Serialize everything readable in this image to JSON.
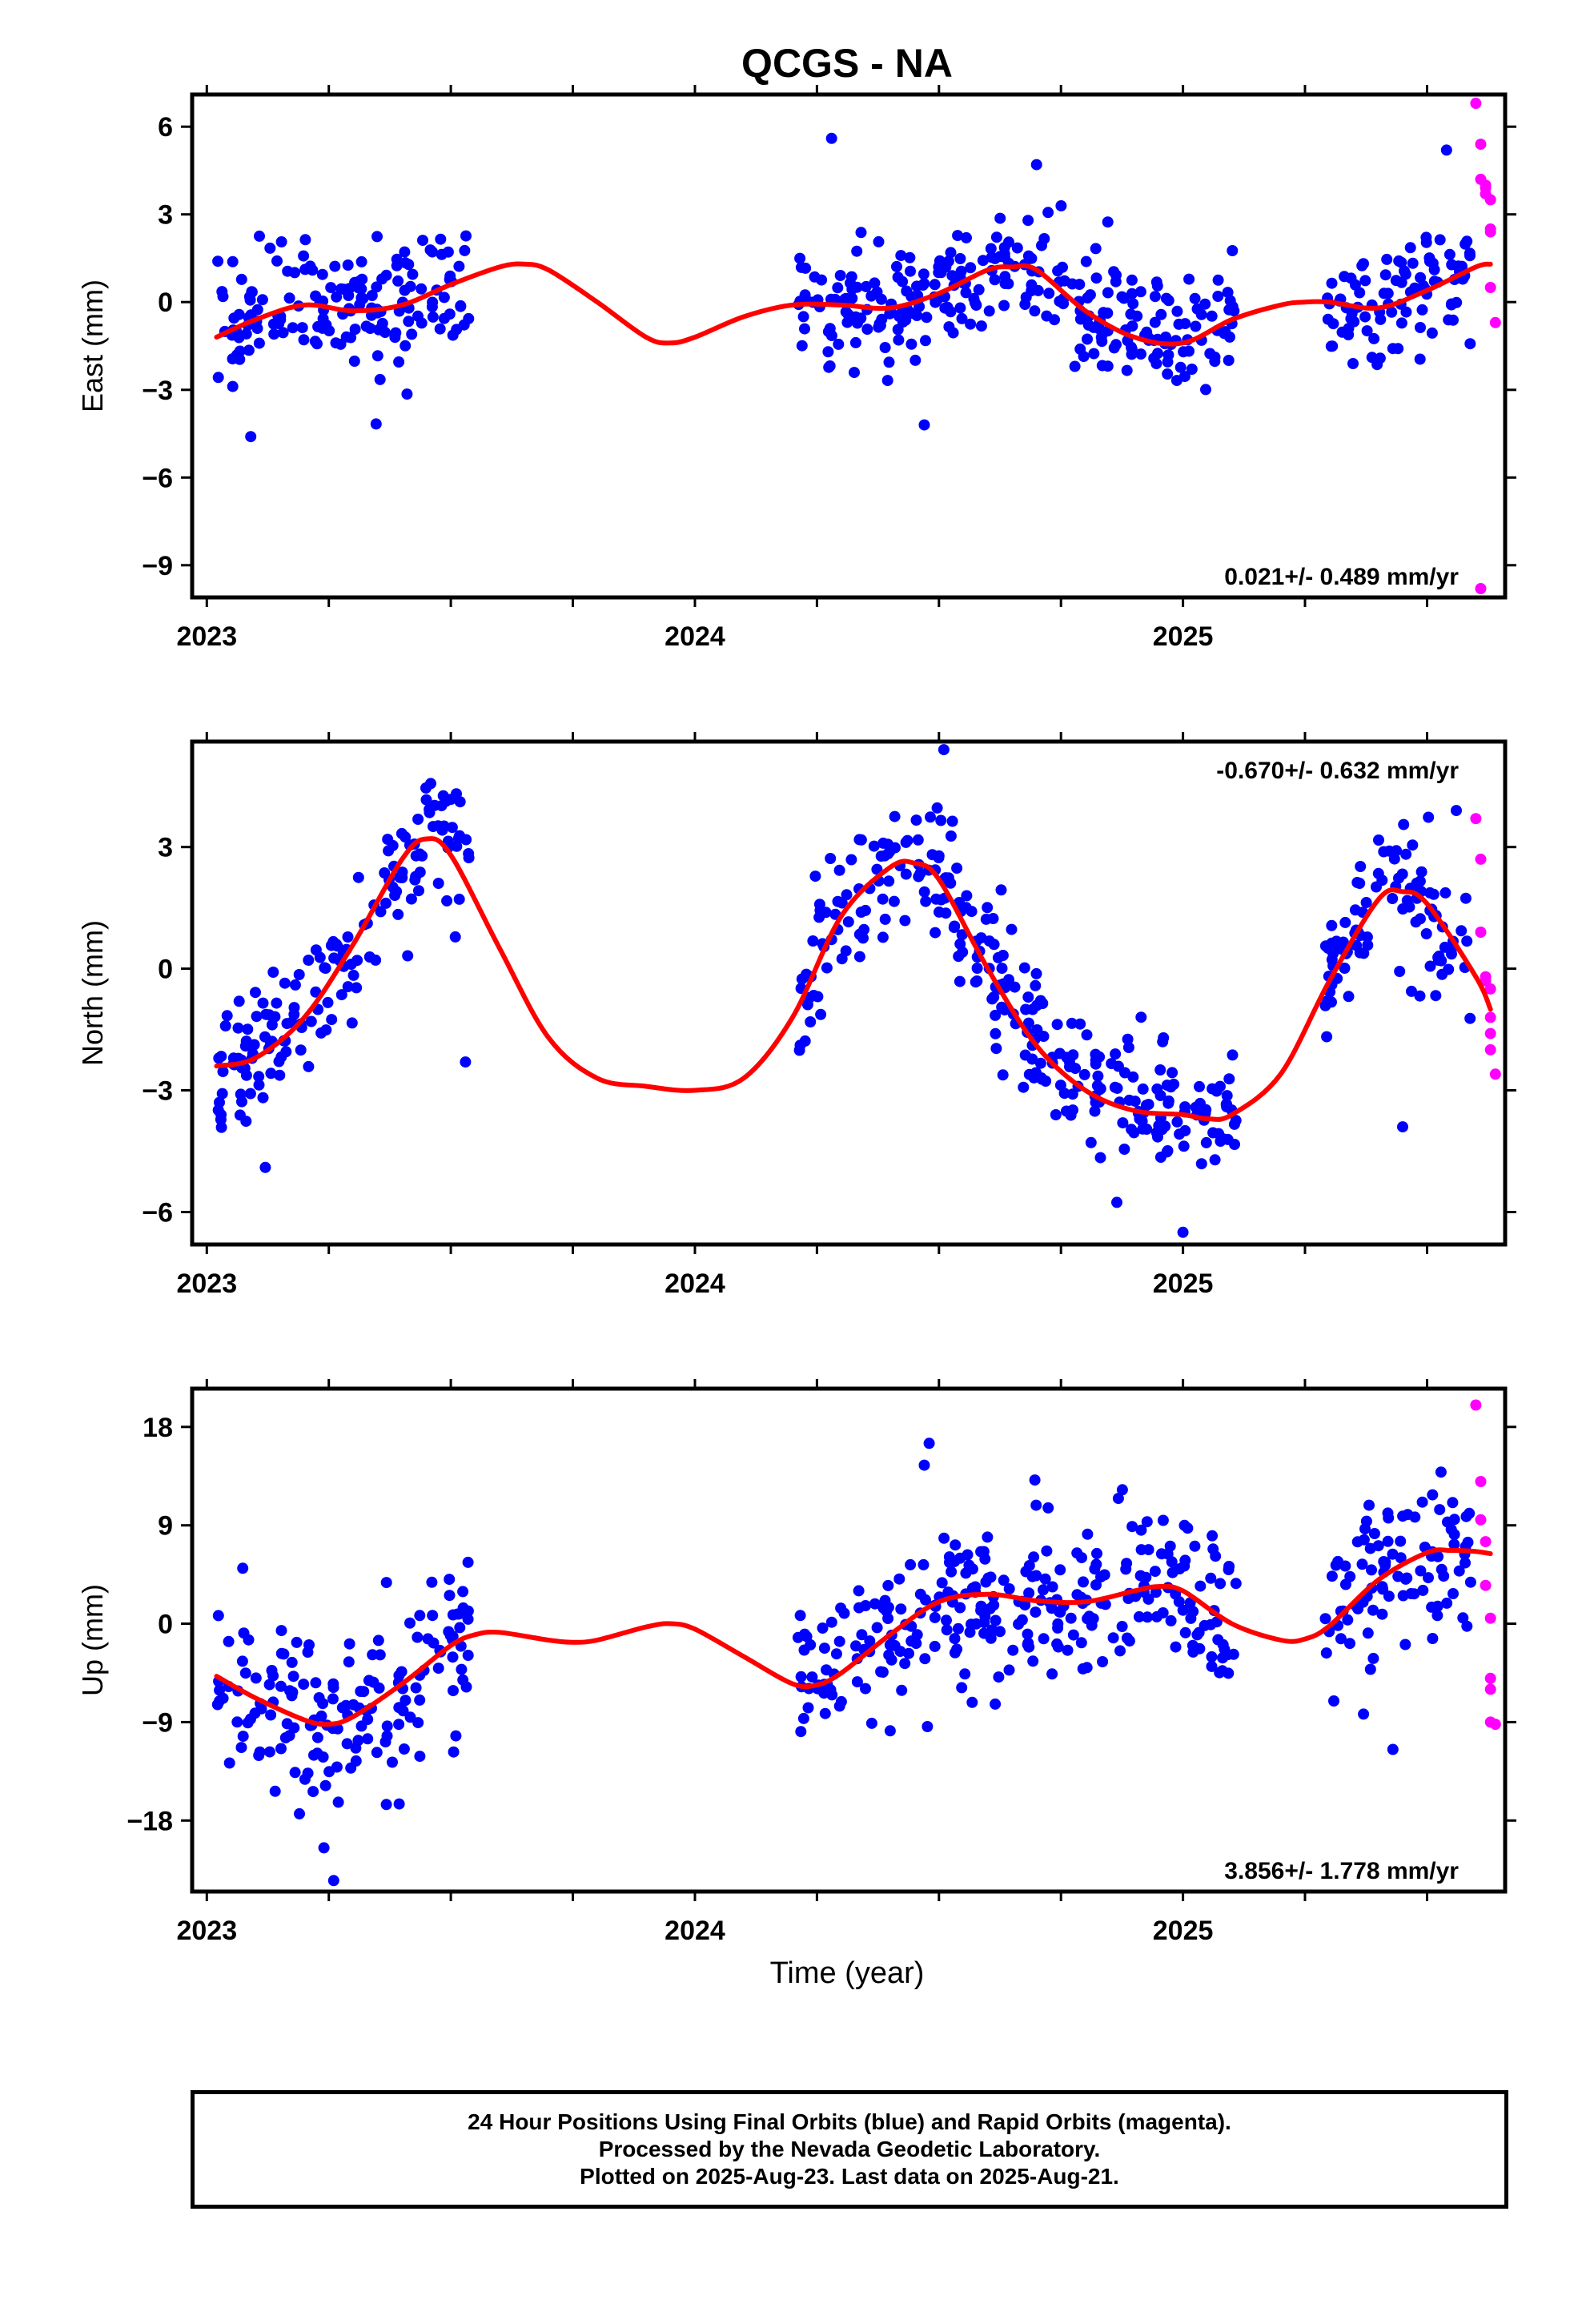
{
  "title": "QCGS - NA",
  "xlabel": "Time (year)",
  "caption": [
    "24 Hour Positions Using Final Orbits (blue) and Rapid Orbits (magenta).",
    "Processed by the Nevada Geodetic Laboratory.",
    "Plotted on 2025-Aug-23. Last data on 2025-Aug-21."
  ],
  "colors": {
    "final": "#0000ff",
    "rapid": "#ff00ff",
    "model": "#ff0000",
    "frame": "#000000"
  },
  "chart_data": [
    {
      "type": "scatter",
      "name": "east",
      "ylabel": "East (mm)",
      "rate": "0.021+/- 0.489 mm/yr",
      "rate_position": "bottom-right",
      "xlim": [
        2022.97,
        2025.66
      ],
      "ylim": [
        -10.1,
        7.1
      ],
      "xticks": [
        2023,
        2024,
        2025
      ],
      "xtick_labels": [
        "2023",
        "2024",
        "2025"
      ],
      "yticks": [
        6,
        3,
        0,
        -3,
        -6,
        -9
      ],
      "ytick_labels": [
        "6",
        "3",
        "0",
        "−3",
        "−6",
        "−9"
      ],
      "grid": false,
      "model": {
        "x": [
          2023.02,
          2023.1,
          2023.2,
          2023.3,
          2023.4,
          2023.5,
          2023.6,
          2023.65,
          2023.7,
          2023.8,
          2023.9,
          2023.95,
          2024.0,
          2024.1,
          2024.2,
          2024.3,
          2024.4,
          2024.5,
          2024.6,
          2024.65,
          2024.7,
          2024.8,
          2024.9,
          2025.0,
          2025.1,
          2025.2,
          2025.25,
          2025.3,
          2025.4,
          2025.5,
          2025.6,
          2025.63
        ],
        "y": [
          -1.2,
          -0.6,
          -0.1,
          -0.3,
          -0.1,
          0.6,
          1.2,
          1.3,
          1.1,
          0.0,
          -1.2,
          -1.4,
          -1.2,
          -0.5,
          -0.1,
          -0.1,
          -0.2,
          0.3,
          1.1,
          1.2,
          1.1,
          -0.3,
          -1.2,
          -1.4,
          -0.6,
          -0.1,
          0.0,
          0.0,
          -0.2,
          0.4,
          1.2,
          1.3
        ]
      },
      "final": {
        "seed": 11,
        "segments": [
          {
            "from": 2023.02,
            "to": 2023.54,
            "n": 160,
            "noise": 1.05
          },
          {
            "from": 2024.21,
            "to": 2024.93,
            "n": 230,
            "noise": 1.0
          },
          {
            "from": 2024.94,
            "to": 2025.11,
            "n": 55,
            "noise": 1.05
          },
          {
            "from": 2025.29,
            "to": 2025.59,
            "n": 95,
            "noise": 1.0
          }
        ],
        "extra_x": [
          2023.09,
          2024.28,
          2024.7,
          2024.47,
          2025.54
        ],
        "extra_y": [
          -4.6,
          5.6,
          4.7,
          -4.2,
          5.2
        ]
      },
      "rapid": {
        "x": [
          2025.6,
          2025.61,
          2025.61,
          2025.62,
          2025.62,
          2025.63,
          2025.63,
          2025.63,
          2025.63,
          2025.64,
          2025.61,
          2025.62
        ],
        "y": [
          6.8,
          5.4,
          4.2,
          3.9,
          3.7,
          3.5,
          2.5,
          2.4,
          0.5,
          -0.7,
          -9.8,
          4.0
        ]
      }
    },
    {
      "type": "scatter",
      "name": "north",
      "ylabel": "North (mm)",
      "rate": "-0.670+/- 0.632 mm/yr",
      "rate_position": "top-right",
      "xlim": [
        2022.97,
        2025.66
      ],
      "ylim": [
        -6.8,
        5.6
      ],
      "xticks": [
        2023,
        2024,
        2025
      ],
      "xtick_labels": [
        "2023",
        "2024",
        "2025"
      ],
      "yticks": [
        3,
        0,
        -3,
        -6
      ],
      "ytick_labels": [
        "3",
        "0",
        "−3",
        "−6"
      ],
      "grid": false,
      "model": {
        "x": [
          2023.02,
          2023.1,
          2023.2,
          2023.3,
          2023.4,
          2023.45,
          2023.5,
          2023.6,
          2023.7,
          2023.8,
          2023.9,
          2024.0,
          2024.1,
          2024.2,
          2024.3,
          2024.4,
          2024.45,
          2024.5,
          2024.6,
          2024.7,
          2024.8,
          2024.9,
          2025.0,
          2025.05,
          2025.1,
          2025.2,
          2025.3,
          2025.4,
          2025.45,
          2025.5,
          2025.6,
          2025.63
        ],
        "y": [
          -2.4,
          -2.2,
          -1.2,
          0.6,
          2.7,
          3.2,
          2.8,
          0.5,
          -1.7,
          -2.7,
          -2.9,
          -3.0,
          -2.7,
          -1.2,
          1.3,
          2.5,
          2.6,
          2.2,
          0.0,
          -1.9,
          -3.0,
          -3.5,
          -3.6,
          -3.7,
          -3.6,
          -2.6,
          -0.3,
          1.7,
          1.9,
          1.6,
          -0.2,
          -1.0
        ]
      },
      "final": {
        "seed": 23,
        "segments": [
          {
            "from": 2023.02,
            "to": 2023.54,
            "n": 160,
            "noise": 0.85
          },
          {
            "from": 2024.21,
            "to": 2024.93,
            "n": 230,
            "noise": 0.85
          },
          {
            "from": 2024.94,
            "to": 2025.11,
            "n": 55,
            "noise": 0.7
          },
          {
            "from": 2025.29,
            "to": 2025.59,
            "n": 95,
            "noise": 0.85
          }
        ],
        "extra_x": [
          2023.12,
          2023.53,
          2024.51,
          2025.0,
          2025.45,
          2025.56
        ],
        "extra_y": [
          -4.9,
          -2.3,
          5.4,
          -6.5,
          -3.9,
          3.9
        ]
      },
      "rapid": {
        "x": [
          2025.6,
          2025.61,
          2025.61,
          2025.62,
          2025.62,
          2025.63,
          2025.63,
          2025.63,
          2025.63,
          2025.64
        ],
        "y": [
          3.7,
          2.7,
          0.9,
          -0.2,
          -0.3,
          -0.5,
          -1.2,
          -1.6,
          -2.0,
          -2.6
        ]
      }
    },
    {
      "type": "scatter",
      "name": "up",
      "ylabel": "Up (mm)",
      "rate": "3.856+/- 1.778 mm/yr",
      "rate_position": "bottom-right",
      "xlim": [
        2022.97,
        2025.66
      ],
      "ylim": [
        -24.5,
        21.5
      ],
      "xticks": [
        2023,
        2024,
        2025
      ],
      "xtick_labels": [
        "2023",
        "2024",
        "2025"
      ],
      "yticks": [
        18,
        9,
        0,
        -9,
        -18
      ],
      "ytick_labels": [
        "18",
        "9",
        "0",
        "−9",
        "−18"
      ],
      "grid": false,
      "model": {
        "x": [
          2023.02,
          2023.1,
          2023.2,
          2023.25,
          2023.3,
          2023.4,
          2023.5,
          2023.55,
          2023.6,
          2023.7,
          2023.75,
          2023.8,
          2023.9,
          2023.95,
          2024.0,
          2024.1,
          2024.2,
          2024.25,
          2024.3,
          2024.4,
          2024.5,
          2024.6,
          2024.7,
          2024.8,
          2024.9,
          2024.95,
          2025.0,
          2025.1,
          2025.2,
          2025.25,
          2025.3,
          2025.4,
          2025.5,
          2025.55,
          2025.6,
          2025.63
        ],
        "y": [
          -4.8,
          -6.8,
          -8.8,
          -9.2,
          -8.5,
          -5.5,
          -2.0,
          -1.0,
          -0.8,
          -1.5,
          -1.7,
          -1.5,
          -0.3,
          0.0,
          -0.5,
          -3.0,
          -5.5,
          -5.6,
          -4.5,
          -1.0,
          2.0,
          2.7,
          2.1,
          2.0,
          3.0,
          3.4,
          3.0,
          0.0,
          -1.5,
          -1.4,
          -0.2,
          4.0,
          6.5,
          6.7,
          6.6,
          6.4
        ]
      },
      "final": {
        "seed": 37,
        "segments": [
          {
            "from": 2023.02,
            "to": 2023.54,
            "n": 160,
            "noise": 4.0
          },
          {
            "from": 2024.21,
            "to": 2024.93,
            "n": 230,
            "noise": 3.6
          },
          {
            "from": 2024.94,
            "to": 2025.11,
            "n": 55,
            "noise": 3.6
          },
          {
            "from": 2025.29,
            "to": 2025.59,
            "n": 95,
            "noise": 3.8
          }
        ],
        "extra_x": [
          2023.26,
          2024.48,
          2024.47,
          2023.24,
          2025.43
        ],
        "extra_y": [
          -23.5,
          16.5,
          14.5,
          -20.5,
          -11.5
        ]
      },
      "rapid": {
        "x": [
          2025.6,
          2025.61,
          2025.61,
          2025.62,
          2025.62,
          2025.63,
          2025.63,
          2025.63,
          2025.63,
          2025.64
        ],
        "y": [
          20.0,
          13.0,
          9.5,
          7.5,
          3.5,
          0.5,
          -5.0,
          -6.0,
          -9.0,
          -9.2
        ]
      }
    }
  ]
}
